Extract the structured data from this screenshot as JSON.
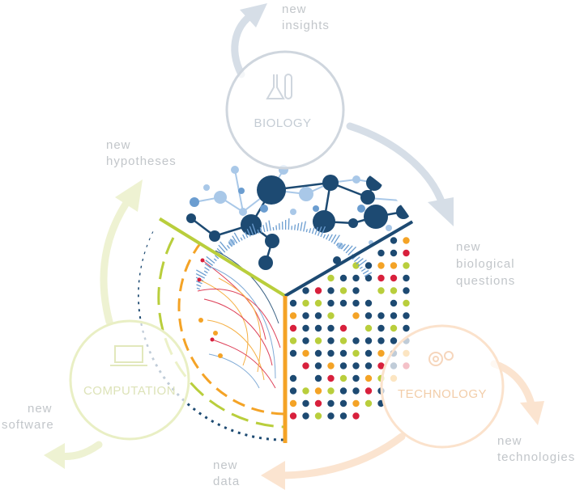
{
  "nodes": {
    "biology": {
      "label": "BIOLOGY",
      "color": "#cfd6de"
    },
    "computation": {
      "label": "COMPUTATION",
      "color": "#e9efc4"
    },
    "technology": {
      "label": "TECHNOLOGY",
      "color": "#fbe2cc"
    }
  },
  "outputs": {
    "insights": [
      "new",
      "insights"
    ],
    "questions": [
      "new",
      "biological",
      "questions"
    ],
    "technologies": [
      "new",
      "technologies"
    ],
    "data": [
      "new",
      "data"
    ],
    "software": [
      "new",
      "software"
    ],
    "hypotheses": [
      "new",
      "hypotheses"
    ]
  },
  "colors": {
    "navy": "#1d4a72",
    "mid_blue": "#6b9dd0",
    "light_blue": "#a9c8e8",
    "lime": "#b9ce3c",
    "orange": "#f4a326",
    "red": "#d8203c",
    "label_gray": "#c2c6ca"
  }
}
